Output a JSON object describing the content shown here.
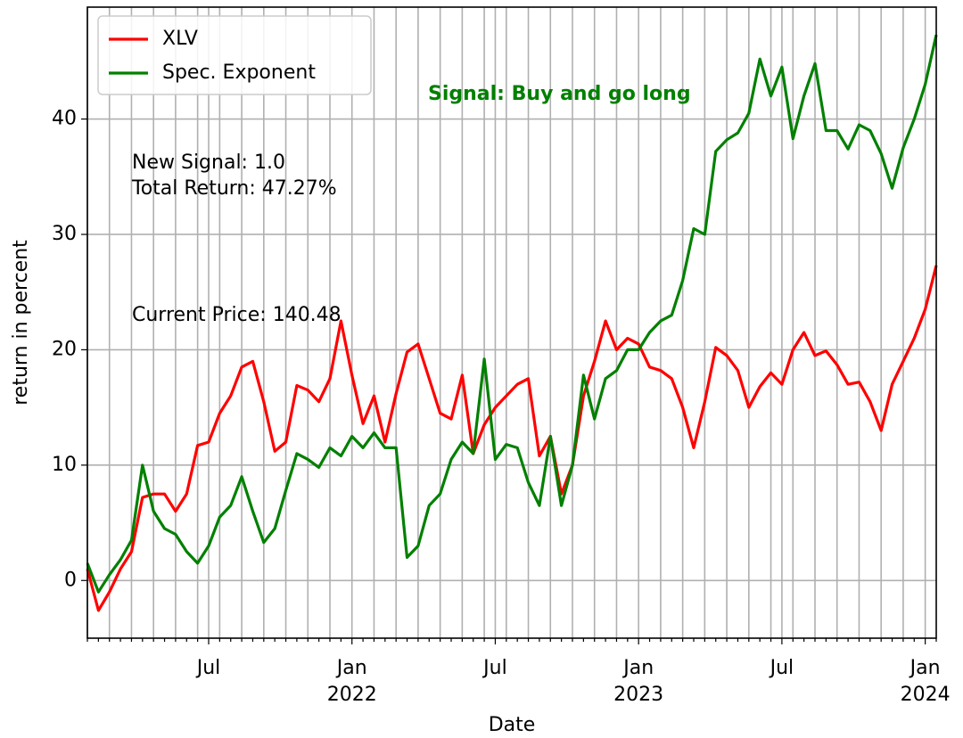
{
  "chart_data": {
    "type": "line",
    "xlabel": "Date",
    "ylabel": "return in percent",
    "categories": [
      null,
      null,
      null,
      null,
      null,
      null,
      null,
      null,
      null,
      null,
      null,
      "Jul",
      null,
      null,
      null,
      null,
      null,
      null,
      null,
      null,
      null,
      null,
      null,
      null,
      "Jan 2022",
      null,
      null,
      null,
      null,
      null,
      null,
      null,
      null,
      null,
      null,
      null,
      null,
      "Jul",
      null,
      null,
      null,
      null,
      null,
      null,
      null,
      null,
      null,
      null,
      null,
      null,
      "Jan 2023",
      null,
      null,
      null,
      null,
      null,
      null,
      null,
      null,
      null,
      null,
      null,
      null,
      "Jul",
      null,
      null,
      null,
      null,
      null,
      null,
      null,
      null,
      null,
      null,
      null,
      null,
      "Jan 2024",
      null
    ],
    "series": [
      {
        "name": "XLV",
        "color": "#ff0000",
        "values": [
          1,
          -2.6,
          -1,
          1,
          2.5,
          7.2,
          7.5,
          7.5,
          6,
          7.5,
          11.7,
          12,
          14.5,
          16,
          18.5,
          19,
          15.5,
          11.2,
          12,
          16.9,
          16.5,
          15.5,
          17.5,
          22.5,
          17.8,
          13.6,
          16,
          12,
          16.2,
          19.8,
          20.5,
          17.5,
          14.5,
          14,
          17.8,
          11,
          13.5,
          15,
          16,
          17,
          17.5,
          10.8,
          12.5,
          7.5,
          10,
          16,
          19,
          22.5,
          20,
          21,
          20.5,
          18.5,
          18.2,
          17.5,
          15,
          11.5,
          15.5,
          20.2,
          19.5,
          18.2,
          15,
          16.8,
          18,
          17,
          20,
          21.5,
          19.5,
          19.9,
          18.7,
          17,
          17.2,
          15.5,
          13,
          17,
          19,
          21,
          23.5,
          27.3
        ]
      },
      {
        "name": "Spec. Exponent",
        "color": "#008000",
        "values": [
          1.5,
          -1,
          0.5,
          1.8,
          3.5,
          10,
          6,
          4.5,
          4,
          2.5,
          1.5,
          3,
          5.5,
          6.5,
          9,
          6,
          3.3,
          4.5,
          7.8,
          11,
          10.5,
          9.8,
          11.5,
          10.8,
          12.5,
          11.5,
          12.8,
          11.5,
          11.5,
          2,
          3,
          6.5,
          7.5,
          10.5,
          12,
          11,
          19.2,
          10.5,
          11.8,
          11.5,
          8.5,
          6.5,
          12.5,
          6.5,
          10,
          17.8,
          14,
          17.5,
          18.2,
          20,
          20,
          21.5,
          22.5,
          23,
          26,
          30.5,
          30,
          37.2,
          38.2,
          38.8,
          40.5,
          45.2,
          42,
          44.5,
          38.3,
          42,
          44.8,
          39,
          39,
          37.4,
          39.5,
          39,
          37,
          34,
          37.5,
          40,
          43,
          47.3
        ]
      }
    ],
    "ylim": [
      -5,
      49.7
    ],
    "yticks": [
      0,
      10,
      20,
      30,
      40
    ],
    "grid": true,
    "legend": "upper left",
    "annotations": [
      {
        "text": "New Signal: 1.0"
      },
      {
        "text": "Total Return: 47.27%"
      },
      {
        "text": "Current Price: 140.48"
      },
      {
        "text": "Signal: Buy and go long",
        "color": "#008000"
      }
    ]
  }
}
